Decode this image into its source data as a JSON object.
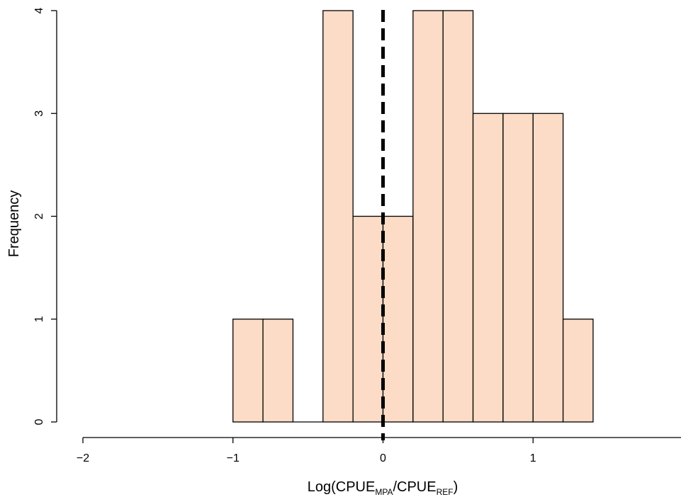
{
  "chart_data": {
    "type": "bar",
    "subtype": "histogram",
    "bin_width": 0.2,
    "bins": [
      {
        "x0": -1.0,
        "x1": -0.8,
        "count": 1
      },
      {
        "x0": -0.8,
        "x1": -0.6,
        "count": 1
      },
      {
        "x0": -0.6,
        "x1": -0.4,
        "count": 0
      },
      {
        "x0": -0.4,
        "x1": -0.2,
        "count": 4
      },
      {
        "x0": -0.2,
        "x1": 0.0,
        "count": 2
      },
      {
        "x0": 0.0,
        "x1": 0.2,
        "count": 2
      },
      {
        "x0": 0.2,
        "x1": 0.4,
        "count": 4
      },
      {
        "x0": 0.4,
        "x1": 0.6,
        "count": 4
      },
      {
        "x0": 0.6,
        "x1": 0.8,
        "count": 3
      },
      {
        "x0": 0.8,
        "x1": 1.0,
        "count": 3
      },
      {
        "x0": 1.0,
        "x1": 1.2,
        "count": 3
      },
      {
        "x0": 1.2,
        "x1": 1.4,
        "count": 1
      }
    ],
    "xlim": [
      -2,
      2
    ],
    "ylim": [
      0,
      4
    ],
    "xticks": [
      -2,
      -1,
      0,
      1
    ],
    "yticks": [
      0,
      1,
      2,
      3,
      4
    ],
    "xlabel": {
      "base": "Log(CPUE",
      "sub1": "MPA",
      "mid": "/CPUE",
      "sub2": "REF",
      "end": ")"
    },
    "ylabel": "Frequency",
    "reference_line": {
      "x": 0,
      "style": "dashed"
    },
    "bar_fill": "#fcdcc6",
    "bar_stroke": "#000000",
    "grid": false
  }
}
